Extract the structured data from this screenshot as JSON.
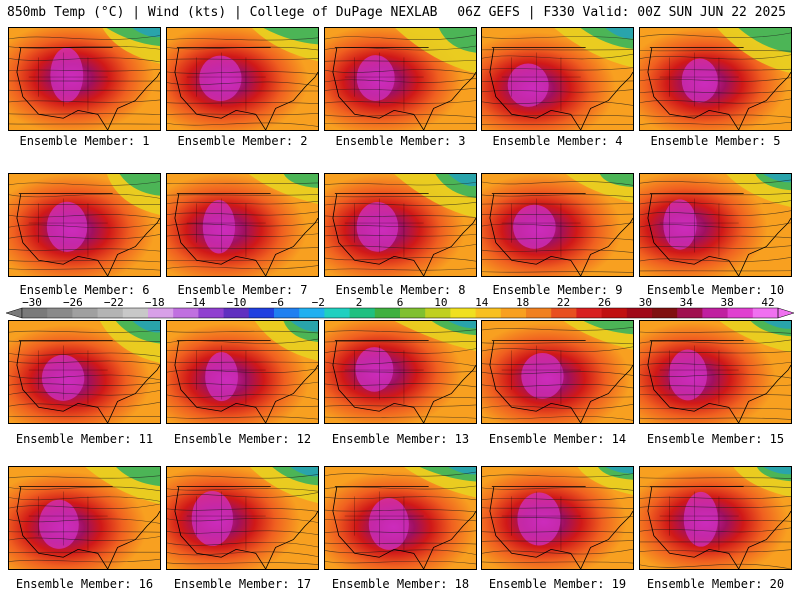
{
  "header": {
    "title": "850mb Temp (°C) | Wind (kts) | College of DuPage NEXLAB",
    "run": "06Z GEFS | F330 Valid: 00Z SUN JUN 22 2025"
  },
  "members": [
    {
      "caption": "Ensemble Member: 1"
    },
    {
      "caption": "Ensemble Member: 2"
    },
    {
      "caption": "Ensemble Member: 3"
    },
    {
      "caption": "Ensemble Member: 4"
    },
    {
      "caption": "Ensemble Member: 5"
    },
    {
      "caption": "Ensemble Member: 6"
    },
    {
      "caption": "Ensemble Member: 7"
    },
    {
      "caption": "Ensemble Member: 8"
    },
    {
      "caption": "Ensemble Member: 9"
    },
    {
      "caption": "Ensemble Member: 10"
    },
    {
      "caption": "Ensemble Member: 11"
    },
    {
      "caption": "Ensemble Member: 12"
    },
    {
      "caption": "Ensemble Member: 13"
    },
    {
      "caption": "Ensemble Member: 14"
    },
    {
      "caption": "Ensemble Member: 15"
    },
    {
      "caption": "Ensemble Member: 16"
    },
    {
      "caption": "Ensemble Member: 17"
    },
    {
      "caption": "Ensemble Member: 18"
    },
    {
      "caption": "Ensemble Member: 19"
    },
    {
      "caption": "Ensemble Member: 20"
    }
  ],
  "colorbar": {
    "labels": [
      "−30",
      "−26",
      "−22",
      "−18",
      "−14",
      "−10",
      "−6",
      "−2",
      "2",
      "6",
      "10",
      "14",
      "18",
      "22",
      "26",
      "30",
      "34",
      "38",
      "42"
    ],
    "colors": [
      "#7a7a7a",
      "#8a8a8a",
      "#a0a0a0",
      "#b4b4b4",
      "#c8c8c8",
      "#d8a0e8",
      "#c070e0",
      "#9040d0",
      "#6030c0",
      "#2040e0",
      "#2080f0",
      "#20b0f0",
      "#20d0c0",
      "#20c080",
      "#40b040",
      "#80c030",
      "#c0d020",
      "#f0e020",
      "#f8c020",
      "#f8a020",
      "#f08020",
      "#e85020",
      "#d82020",
      "#c01010",
      "#a00818",
      "#801010",
      "#a01050",
      "#c020a0",
      "#e040d0",
      "#f070f0"
    ]
  }
}
